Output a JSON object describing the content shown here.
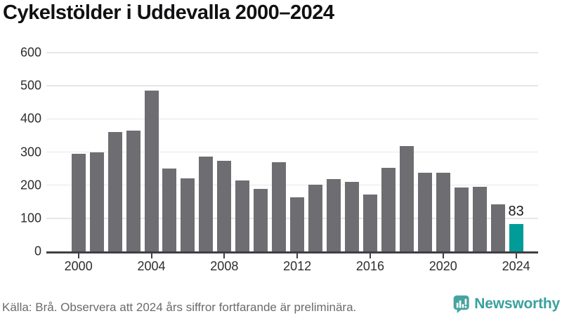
{
  "header": {
    "title": "Cykelstölder i Uddevalla 2000–2024"
  },
  "chart_data": {
    "type": "bar",
    "title": "Cykelstölder i Uddevalla 2000–2024",
    "categories": [
      "2000",
      "2001",
      "2002",
      "2003",
      "2004",
      "2005",
      "2006",
      "2007",
      "2008",
      "2009",
      "2010",
      "2011",
      "2012",
      "2013",
      "2014",
      "2015",
      "2016",
      "2017",
      "2018",
      "2019",
      "2020",
      "2021",
      "2022",
      "2023",
      "2024"
    ],
    "values": [
      295,
      298,
      360,
      364,
      485,
      250,
      220,
      287,
      273,
      214,
      188,
      269,
      163,
      201,
      219,
      210,
      172,
      252,
      318,
      237,
      237,
      193,
      196,
      143,
      83
    ],
    "ylim": [
      0,
      600
    ],
    "yticks": [
      0,
      100,
      200,
      300,
      400,
      500,
      600
    ],
    "xtick_labels": [
      "2000",
      "2004",
      "2008",
      "2012",
      "2016",
      "2020",
      "2024"
    ],
    "grid": true,
    "legend": false,
    "bar_color": "#6e6e72",
    "highlight": {
      "category": "2024",
      "value": 83,
      "label": "83",
      "color": "#009c98"
    },
    "gridline_color": "#e7e7e7",
    "axis_color": "#3f3f44"
  },
  "footer": {
    "source_note": "Källa: Brå. Observera att 2024 års siffror fortfarande är preliminära."
  },
  "branding": {
    "name": "Newsworthy",
    "color": "#3aa19d",
    "icon": "speech-bubble-bar-chart-icon"
  }
}
